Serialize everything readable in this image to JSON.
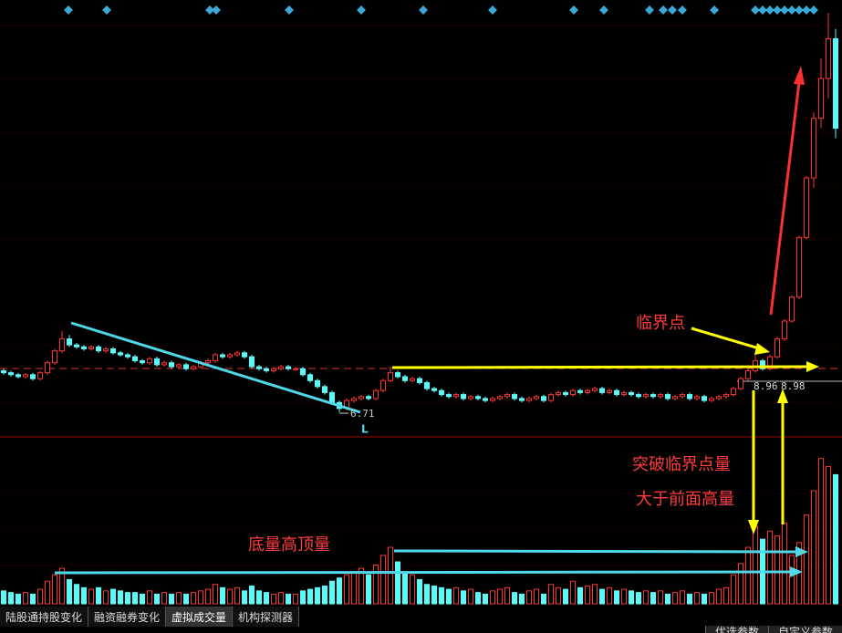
{
  "chart_data": {
    "type": "candlestick",
    "ylim": [
      5.47,
      27.45
    ],
    "vlim": [
      0,
      100
    ],
    "up_color": "#ff3232",
    "down_color": "#54fcfc",
    "candles": [
      [
        8.8,
        8.9,
        8.6,
        8.7
      ],
      [
        8.7,
        8.8,
        8.5,
        8.6
      ],
      [
        8.6,
        8.7,
        8.4,
        8.5
      ],
      [
        8.5,
        8.7,
        8.4,
        8.6
      ],
      [
        8.6,
        8.7,
        8.3,
        8.4
      ],
      [
        8.4,
        8.8,
        8.3,
        8.7
      ],
      [
        8.7,
        9.3,
        8.6,
        9.2
      ],
      [
        9.2,
        9.9,
        9.1,
        9.8
      ],
      [
        9.8,
        10.8,
        9.7,
        10.4
      ],
      [
        10.4,
        10.6,
        10.0,
        10.1
      ],
      [
        10.1,
        10.2,
        9.9,
        10.0
      ],
      [
        10.0,
        10.1,
        9.8,
        9.9
      ],
      [
        9.9,
        10.1,
        9.8,
        10.0
      ],
      [
        10.0,
        10.1,
        9.7,
        9.8
      ],
      [
        9.8,
        10.0,
        9.7,
        9.9
      ],
      [
        9.9,
        10.0,
        9.6,
        9.7
      ],
      [
        9.7,
        9.8,
        9.5,
        9.6
      ],
      [
        9.6,
        9.7,
        9.4,
        9.5
      ],
      [
        9.5,
        9.6,
        9.2,
        9.3
      ],
      [
        9.3,
        9.4,
        9.1,
        9.2
      ],
      [
        9.2,
        9.5,
        9.1,
        9.4
      ],
      [
        9.4,
        9.5,
        9.0,
        9.1
      ],
      [
        9.1,
        9.3,
        9.0,
        9.2
      ],
      [
        9.2,
        9.3,
        8.9,
        9.0
      ],
      [
        9.0,
        9.2,
        8.9,
        9.1
      ],
      [
        9.1,
        9.2,
        8.8,
        8.9
      ],
      [
        8.9,
        9.1,
        8.8,
        9.0
      ],
      [
        9.0,
        9.3,
        8.9,
        9.2
      ],
      [
        9.2,
        9.4,
        9.1,
        9.3
      ],
      [
        9.3,
        9.7,
        9.2,
        9.6
      ],
      [
        9.6,
        9.7,
        9.4,
        9.5
      ],
      [
        9.5,
        9.7,
        9.4,
        9.6
      ],
      [
        9.6,
        9.8,
        9.5,
        9.7
      ],
      [
        9.7,
        9.8,
        9.4,
        9.5
      ],
      [
        9.5,
        9.6,
        8.9,
        9.0
      ],
      [
        9.0,
        9.1,
        8.8,
        8.9
      ],
      [
        8.9,
        9.0,
        8.7,
        8.8
      ],
      [
        8.8,
        9.0,
        8.7,
        8.9
      ],
      [
        8.9,
        9.1,
        8.8,
        9.0
      ],
      [
        9.0,
        9.1,
        8.8,
        8.9
      ],
      [
        8.9,
        9.0,
        8.8,
        8.9
      ],
      [
        8.9,
        9.0,
        8.5,
        8.6
      ],
      [
        8.6,
        8.7,
        8.2,
        8.3
      ],
      [
        8.3,
        8.4,
        7.9,
        8.0
      ],
      [
        8.0,
        8.1,
        7.6,
        7.7
      ],
      [
        7.7,
        7.8,
        7.1,
        7.2
      ],
      [
        7.2,
        7.3,
        6.71,
        6.9
      ],
      [
        6.9,
        7.4,
        6.8,
        7.3
      ],
      [
        7.3,
        7.5,
        7.2,
        7.4
      ],
      [
        7.4,
        7.6,
        7.3,
        7.5
      ],
      [
        7.5,
        7.6,
        7.3,
        7.4
      ],
      [
        7.4,
        7.9,
        7.3,
        7.8
      ],
      [
        7.8,
        8.4,
        7.7,
        8.3
      ],
      [
        8.3,
        9.0,
        8.2,
        8.7
      ],
      [
        8.7,
        8.8,
        8.4,
        8.5
      ],
      [
        8.5,
        8.6,
        8.2,
        8.3
      ],
      [
        8.3,
        8.5,
        8.2,
        8.4
      ],
      [
        8.4,
        8.5,
        8.1,
        8.2
      ],
      [
        8.2,
        8.3,
        7.8,
        7.9
      ],
      [
        7.9,
        8.0,
        7.7,
        7.8
      ],
      [
        7.8,
        7.9,
        7.5,
        7.6
      ],
      [
        7.6,
        7.7,
        7.4,
        7.5
      ],
      [
        7.5,
        7.7,
        7.4,
        7.6
      ],
      [
        7.6,
        7.7,
        7.3,
        7.4
      ],
      [
        7.4,
        7.6,
        7.3,
        7.5
      ],
      [
        7.5,
        7.6,
        7.3,
        7.4
      ],
      [
        7.4,
        7.5,
        7.2,
        7.3
      ],
      [
        7.3,
        7.5,
        7.2,
        7.4
      ],
      [
        7.4,
        7.6,
        7.3,
        7.5
      ],
      [
        7.5,
        7.7,
        7.4,
        7.6
      ],
      [
        7.6,
        7.7,
        7.3,
        7.4
      ],
      [
        7.4,
        7.5,
        7.2,
        7.3
      ],
      [
        7.3,
        7.5,
        7.2,
        7.4
      ],
      [
        7.4,
        7.6,
        7.3,
        7.5
      ],
      [
        7.5,
        7.6,
        7.2,
        7.3
      ],
      [
        7.3,
        7.7,
        7.2,
        7.6
      ],
      [
        7.6,
        7.8,
        7.5,
        7.7
      ],
      [
        7.7,
        7.8,
        7.5,
        7.6
      ],
      [
        7.6,
        7.9,
        7.5,
        7.8
      ],
      [
        7.8,
        7.9,
        7.6,
        7.7
      ],
      [
        7.7,
        7.9,
        7.6,
        7.8
      ],
      [
        7.8,
        8.0,
        7.7,
        7.9
      ],
      [
        7.9,
        8.0,
        7.6,
        7.7
      ],
      [
        7.7,
        7.9,
        7.6,
        7.8
      ],
      [
        7.8,
        7.9,
        7.5,
        7.6
      ],
      [
        7.6,
        7.8,
        7.5,
        7.7
      ],
      [
        7.7,
        7.8,
        7.5,
        7.6
      ],
      [
        7.6,
        7.7,
        7.4,
        7.5
      ],
      [
        7.5,
        7.7,
        7.4,
        7.6
      ],
      [
        7.6,
        7.7,
        7.4,
        7.5
      ],
      [
        7.5,
        7.7,
        7.4,
        7.6
      ],
      [
        7.6,
        7.7,
        7.3,
        7.4
      ],
      [
        7.4,
        7.6,
        7.3,
        7.5
      ],
      [
        7.5,
        7.7,
        7.4,
        7.6
      ],
      [
        7.6,
        7.7,
        7.3,
        7.4
      ],
      [
        7.4,
        7.6,
        7.3,
        7.5
      ],
      [
        7.5,
        7.6,
        7.2,
        7.3
      ],
      [
        7.3,
        7.5,
        7.2,
        7.4
      ],
      [
        7.4,
        7.6,
        7.3,
        7.5
      ],
      [
        7.5,
        7.7,
        7.4,
        7.6
      ],
      [
        7.6,
        8.0,
        7.5,
        7.9
      ],
      [
        7.9,
        8.5,
        7.8,
        8.4
      ],
      [
        8.4,
        8.9,
        8.3,
        8.8
      ],
      [
        8.8,
        9.6,
        8.7,
        9.3
      ],
      [
        9.3,
        9.4,
        8.8,
        8.9
      ],
      [
        8.9,
        9.6,
        8.8,
        9.5
      ],
      [
        9.5,
        10.5,
        9.4,
        10.4
      ],
      [
        10.4,
        11.4,
        10.3,
        11.3
      ],
      [
        11.3,
        12.6,
        11.2,
        12.5
      ],
      [
        12.5,
        15.6,
        12.4,
        15.5
      ],
      [
        15.5,
        18.6,
        15.4,
        18.5
      ],
      [
        18.5,
        21.8,
        18.0,
        21.5
      ],
      [
        21.5,
        24.5,
        21.0,
        23.5
      ],
      [
        23.5,
        26.8,
        22.5,
        25.5
      ],
      [
        25.5,
        26.0,
        20.5,
        21.0
      ]
    ],
    "volumes": [
      8,
      7,
      6,
      7,
      6,
      9,
      14,
      18,
      22,
      15,
      12,
      10,
      9,
      10,
      8,
      9,
      8,
      7,
      7,
      6,
      8,
      6,
      7,
      6,
      7,
      6,
      7,
      8,
      9,
      12,
      10,
      9,
      10,
      8,
      11,
      8,
      7,
      6,
      7,
      6,
      6,
      8,
      9,
      10,
      11,
      14,
      16,
      18,
      20,
      22,
      18,
      24,
      30,
      35,
      26,
      20,
      18,
      15,
      12,
      11,
      10,
      9,
      10,
      8,
      9,
      7,
      6,
      8,
      9,
      10,
      7,
      6,
      8,
      9,
      6,
      12,
      10,
      9,
      14,
      10,
      11,
      12,
      9,
      10,
      8,
      9,
      8,
      7,
      8,
      7,
      8,
      6,
      7,
      8,
      6,
      7,
      6,
      7,
      9,
      10,
      18,
      25,
      35,
      48,
      40,
      45,
      42,
      50,
      30,
      38,
      55,
      70,
      90,
      85,
      80
    ],
    "annotations": {
      "critical_point": "临界点",
      "break_volume": "突破临界点量",
      "above_volume": "大于前面高量",
      "bottom_volume": "底量高顶量",
      "low_mark": "L",
      "price_a": "8.96",
      "price_b": "8.98"
    }
  },
  "tabs": [
    "陆股通持股变化",
    "融资融券变化",
    "虚拟成交量",
    "机构探测器"
  ],
  "right_tabs": [
    "优选参数",
    "自定义参数"
  ]
}
